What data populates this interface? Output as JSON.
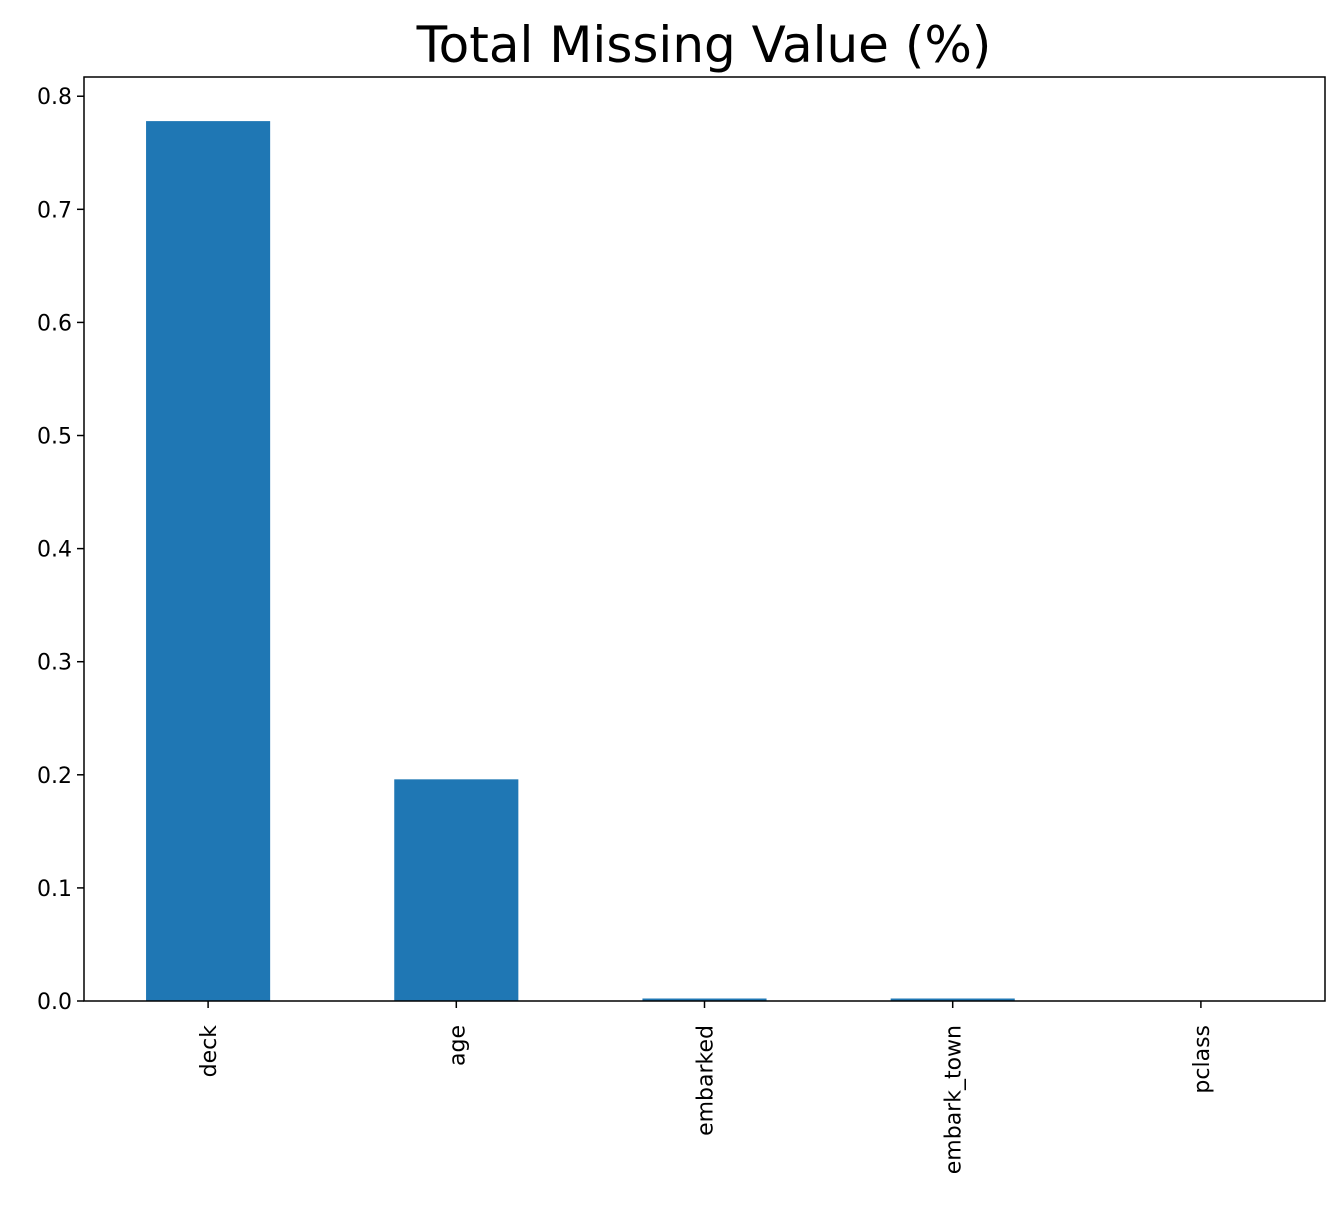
{
  "chart_data": {
    "type": "bar",
    "title": "Total Missing Value (%)",
    "categories": [
      "deck",
      "age",
      "embarked",
      "embark_town",
      "pclass"
    ],
    "values": [
      0.778,
      0.196,
      0.0022,
      0.0022,
      0
    ],
    "color": "#1f77b4",
    "ylim": [
      0,
      0.817
    ],
    "yticks": [
      {
        "value": 0,
        "label": "0.0"
      },
      0.1,
      0.2,
      0.3,
      0.4,
      0.5,
      0.6,
      0.7,
      0.8
    ],
    "grid": false
  }
}
